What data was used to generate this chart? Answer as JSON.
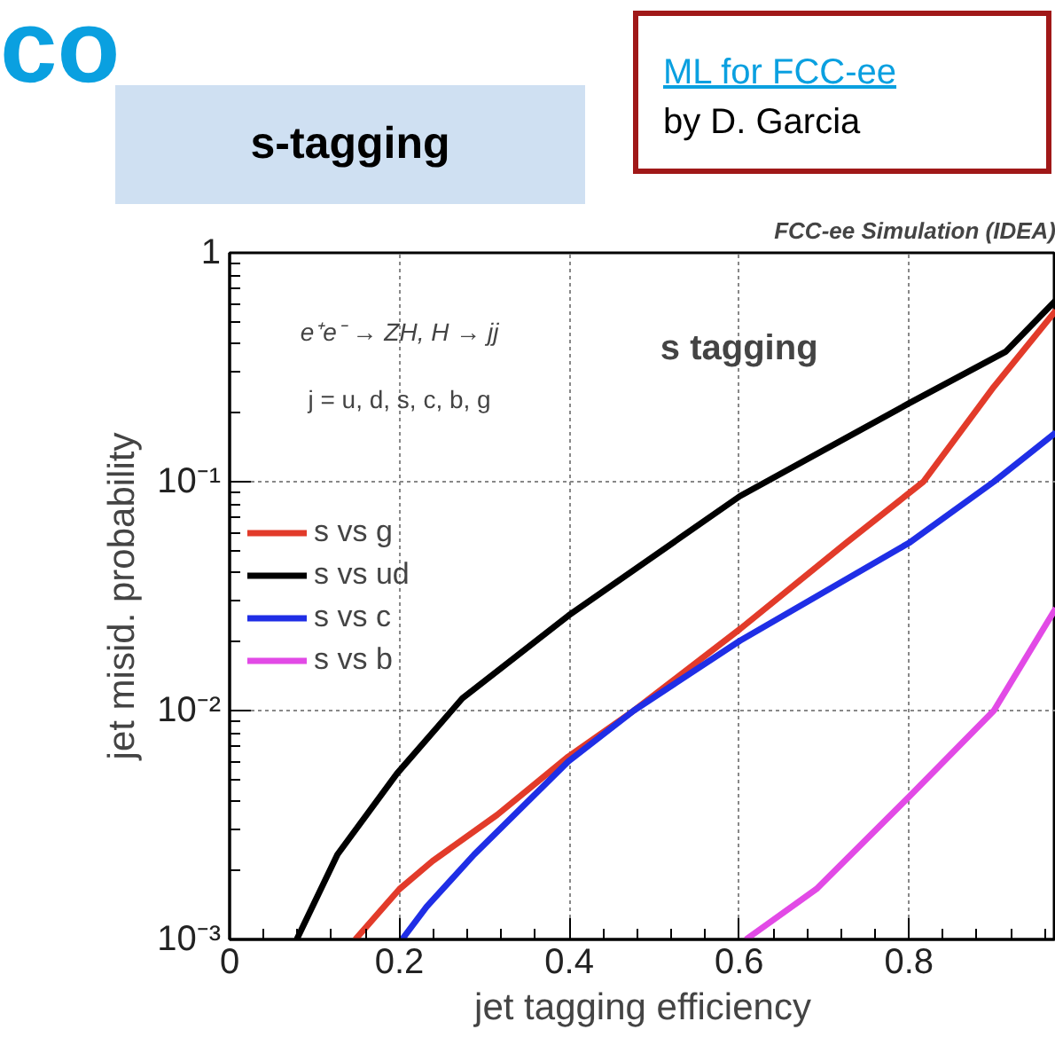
{
  "chart_data": {
    "type": "line",
    "title": "s-tagging",
    "xlabel": "jet tagging efficiency",
    "ylabel": "jet misid. probability",
    "annotations": [
      "co",
      "ML for FCC-ee",
      "by D. Garcia",
      "FCC-ee Simulation (IDEA)",
      "e⁺e⁻ → ZH, H → jj",
      "j = u, d, s, c, b, g",
      "s tagging"
    ],
    "series": [
      {
        "name": "s vs g",
        "color": "#e23b2a",
        "x": [
          0.148,
          0.2,
          0.239,
          0.315,
          0.399,
          0.476,
          0.601,
          0.726,
          0.817,
          0.9,
          0.973
        ],
        "values": [
          0.001,
          0.00166,
          0.0022,
          0.0035,
          0.0063,
          0.01,
          0.0227,
          0.054,
          0.1,
          0.26,
          0.56
        ]
      },
      {
        "name": "s vs ud",
        "color": "#000000",
        "x": [
          0.079,
          0.127,
          0.197,
          0.274,
          0.399,
          0.601,
          0.8,
          0.914,
          0.973
        ],
        "values": [
          0.001,
          0.00235,
          0.0053,
          0.0113,
          0.026,
          0.0865,
          0.22,
          0.37,
          0.62
        ]
      },
      {
        "name": "s vs c",
        "color": "#1f2ee6",
        "x": [
          0.203,
          0.232,
          0.288,
          0.399,
          0.476,
          0.601,
          0.8,
          0.9,
          0.973
        ],
        "values": [
          0.001,
          0.00139,
          0.00235,
          0.006,
          0.01,
          0.0202,
          0.054,
          0.1,
          0.164
        ]
      },
      {
        "name": "s vs b",
        "color": "#e24ae6",
        "x": [
          0.608,
          0.691,
          0.8,
          0.9,
          0.973
        ],
        "values": [
          0.001,
          0.00166,
          0.0042,
          0.01,
          0.028
        ]
      }
    ],
    "xlim": [
      0,
      0.973
    ],
    "xticks": [
      0,
      0.2,
      0.4,
      0.6,
      0.8
    ],
    "ylim": [
      0.001,
      1
    ],
    "yticks": [
      {
        "value": 0.001,
        "label": "10⁻³"
      },
      {
        "value": 0.01,
        "label": "10⁻²"
      },
      {
        "value": 0.1,
        "label": "10⁻¹"
      },
      {
        "value": 1,
        "label": "1"
      }
    ],
    "log": "y",
    "grid": true,
    "legend": "left",
    "line_style": "solid",
    "marker": "none"
  }
}
